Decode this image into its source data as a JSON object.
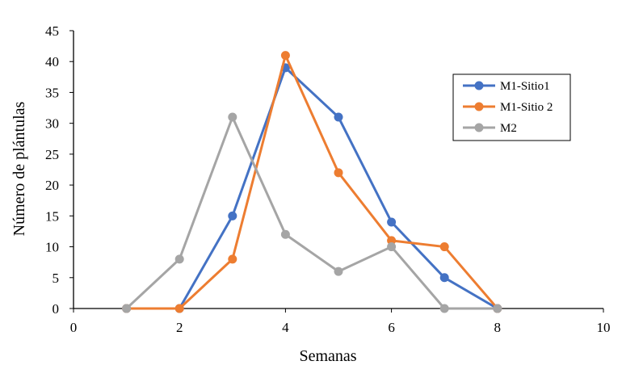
{
  "chart_data": {
    "type": "line",
    "title": "",
    "xlabel": "Semanas",
    "ylabel": "Número de plántulas",
    "xlim": [
      0,
      10
    ],
    "ylim": [
      0,
      45
    ],
    "xticks": [
      0,
      2,
      4,
      6,
      8,
      10
    ],
    "yticks": [
      0,
      5,
      10,
      15,
      20,
      25,
      30,
      35,
      40,
      45
    ],
    "grid": false,
    "legend_position": "right",
    "series": [
      {
        "name": "M1-Sitio1",
        "color": "#4472C4",
        "x": [
          1,
          2,
          3,
          4,
          5,
          6,
          7,
          8
        ],
        "y": [
          0,
          0,
          15,
          39,
          31,
          14,
          5,
          0
        ]
      },
      {
        "name": "M1-Sitio 2",
        "color": "#ED7D31",
        "x": [
          1,
          2,
          3,
          4,
          5,
          6,
          7,
          8
        ],
        "y": [
          0,
          0,
          8,
          41,
          22,
          11,
          10,
          0
        ]
      },
      {
        "name": "M2",
        "color": "#A5A5A5",
        "x": [
          1,
          2,
          3,
          4,
          5,
          6,
          7,
          8
        ],
        "y": [
          0,
          8,
          31,
          12,
          6,
          10,
          0,
          0
        ]
      }
    ]
  }
}
